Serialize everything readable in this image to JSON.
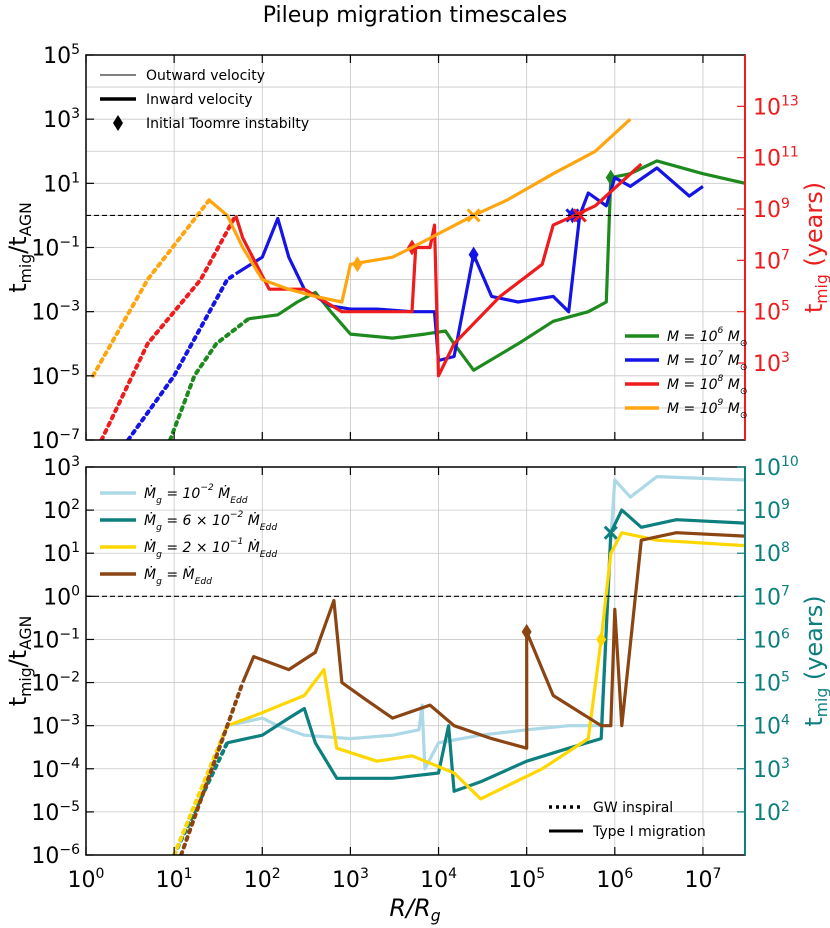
{
  "title": "Pileup migration timescales",
  "x_axis_label": "R/R_g",
  "chart_data": [
    {
      "type": "line",
      "panel": "top",
      "xscale": "log",
      "yscale": "log",
      "xlim": [
        1,
        30000000
      ],
      "ylim": [
        1e-07,
        100000
      ],
      "right_ylim": [
        1,
        1000000000000000.0
      ],
      "right_color": "#ee1c1c",
      "ylabel": "t_mig/t_AGN",
      "right_ylabel": "t_mig (years)",
      "xticks": [
        {
          "base": "10",
          "exp": "0"
        },
        {
          "base": "10",
          "exp": "1"
        },
        {
          "base": "10",
          "exp": "2"
        },
        {
          "base": "10",
          "exp": "3"
        },
        {
          "base": "10",
          "exp": "4"
        },
        {
          "base": "10",
          "exp": "5"
        },
        {
          "base": "10",
          "exp": "6"
        },
        {
          "base": "10",
          "exp": "7"
        }
      ],
      "yticks": [
        {
          "base": "10",
          "exp": "5"
        },
        {
          "base": "10",
          "exp": "3"
        },
        {
          "base": "10",
          "exp": "1"
        },
        {
          "base": "10",
          "exp": "−1"
        },
        {
          "base": "10",
          "exp": "−3"
        },
        {
          "base": "10",
          "exp": "−5"
        },
        {
          "base": "10",
          "exp": "−7"
        }
      ],
      "right_yticks": [
        {
          "base": "10",
          "exp": "13"
        },
        {
          "base": "10",
          "exp": "11"
        },
        {
          "base": "10",
          "exp": "9"
        },
        {
          "base": "10",
          "exp": "7"
        },
        {
          "base": "10",
          "exp": "5"
        },
        {
          "base": "10",
          "exp": "3"
        }
      ],
      "hline": 1,
      "style_legend": {
        "position": "top-left",
        "entries": [
          "Outward velocity",
          "Inward velocity",
          "Initial Toomre instabilty"
        ]
      },
      "series_legend_position": "bottom-right",
      "series": [
        {
          "name": "M = 10^6 M_⊙",
          "color": "#1e8a1e",
          "gw": [
            [
              9,
              1e-07
            ],
            [
              17,
              1e-05
            ],
            [
              30,
              0.0001
            ],
            [
              70,
              0.0006
            ]
          ],
          "migration": [
            [
              70,
              0.0006
            ],
            [
              150,
              0.0008
            ],
            [
              250,
              0.002
            ],
            [
              400,
              0.004
            ],
            [
              600,
              0.001
            ],
            [
              1000,
              0.0002
            ],
            [
              3000,
              0.00015
            ],
            [
              7000,
              0.0002
            ],
            [
              12000,
              0.00025
            ],
            [
              15000,
              0.0001
            ],
            [
              25000,
              1.5e-05
            ],
            [
              80000,
              0.0001
            ],
            [
              200000,
              0.0005
            ],
            [
              500000,
              0.001
            ],
            [
              800000,
              0.002
            ],
            [
              900000,
              15
            ],
            [
              1500000,
              20
            ],
            [
              3000000,
              50
            ],
            [
              10000000,
              20
            ],
            [
              30000000,
              10
            ]
          ],
          "toomre": [
            [
              900000,
              15
            ]
          ],
          "cross": []
        },
        {
          "name": "M = 10^7 M_⊙",
          "color": "#1414e6",
          "gw": [
            [
              3,
              1e-07
            ],
            [
              10,
              1e-05
            ],
            [
              40,
              0.01
            ],
            [
              50,
              0.015
            ]
          ],
          "migration": [
            [
              50,
              0.015
            ],
            [
              100,
              0.05
            ],
            [
              150,
              0.8
            ],
            [
              200,
              0.05
            ],
            [
              300,
              0.005
            ],
            [
              600,
              0.0015
            ],
            [
              1000,
              0.0012
            ],
            [
              2000,
              0.0012
            ],
            [
              5000,
              0.001
            ],
            [
              9000,
              0.001
            ],
            [
              10000,
              3e-05
            ],
            [
              15000,
              4e-05
            ],
            [
              25000,
              0.06
            ],
            [
              40000,
              0.003
            ],
            [
              80000,
              0.002
            ],
            [
              200000,
              0.003
            ],
            [
              300000,
              0.001
            ],
            [
              400000,
              1
            ],
            [
              500000,
              5
            ],
            [
              800000,
              2
            ],
            [
              1000000,
              15
            ],
            [
              1500000,
              8
            ],
            [
              3000000,
              30
            ],
            [
              7000000,
              4
            ],
            [
              10000000,
              8
            ]
          ],
          "toomre": [
            [
              25000,
              0.06
            ],
            [
              330000,
              1
            ]
          ],
          "cross": [
            [
              330000,
              1
            ]
          ]
        },
        {
          "name": "M = 10^8 M_⊙",
          "color": "#ee1c1c",
          "gw": [
            [
              1.5,
              1e-07
            ],
            [
              5,
              0.0001
            ],
            [
              20,
              0.01
            ],
            [
              50,
              1
            ]
          ],
          "migration": [
            [
              50,
              1
            ],
            [
              60,
              0.2
            ],
            [
              120,
              0.005
            ],
            [
              300,
              0.005
            ],
            [
              800,
              0.001
            ],
            [
              2000,
              0.001
            ],
            [
              5000,
              0.001
            ],
            [
              5500,
              0.1
            ],
            [
              8000,
              0.1
            ],
            [
              9000,
              0.5
            ],
            [
              10000,
              1e-05
            ],
            [
              15000,
              0.0001
            ],
            [
              50000,
              0.003
            ],
            [
              150000,
              0.03
            ],
            [
              200000,
              0.5
            ],
            [
              350000,
              1
            ],
            [
              600000,
              2
            ],
            [
              2000000,
              40
            ]
          ],
          "toomre": [
            [
              5000,
              0.1
            ]
          ],
          "cross": [
            [
              400000,
              1
            ]
          ]
        },
        {
          "name": "M = 10^9 M_⊙",
          "color": "#ffa510",
          "gw": [
            [
              1.2,
              1e-05
            ],
            [
              5,
              0.01
            ],
            [
              25,
              3
            ]
          ],
          "migration": [
            [
              25,
              3
            ],
            [
              40,
              1
            ],
            [
              60,
              0.1
            ],
            [
              100,
              0.01
            ],
            [
              200,
              0.005
            ],
            [
              400,
              0.003
            ],
            [
              800,
              0.002
            ],
            [
              1000,
              0.03
            ],
            [
              3000,
              0.05
            ],
            [
              5000,
              0.1
            ],
            [
              25000,
              1
            ],
            [
              60000,
              3
            ],
            [
              200000,
              20
            ],
            [
              600000,
              100
            ],
            [
              1500000,
              1000
            ]
          ],
          "toomre": [
            [
              1200,
              0.03
            ]
          ],
          "cross": [
            [
              25000,
              1
            ]
          ]
        }
      ]
    },
    {
      "type": "line",
      "panel": "bottom",
      "xscale": "log",
      "yscale": "log",
      "xlim": [
        1,
        30000000
      ],
      "ylim": [
        1e-06,
        1000
      ],
      "right_ylim": [
        10,
        10000000000.0
      ],
      "right_color": "#0d7f7f",
      "ylabel": "t_mig/t_AGN",
      "right_ylabel": "t_mig (years)",
      "xlabel": "R/R_g",
      "xticks": [
        {
          "base": "10",
          "exp": "0"
        },
        {
          "base": "10",
          "exp": "1"
        },
        {
          "base": "10",
          "exp": "2"
        },
        {
          "base": "10",
          "exp": "3"
        },
        {
          "base": "10",
          "exp": "4"
        },
        {
          "base": "10",
          "exp": "5"
        },
        {
          "base": "10",
          "exp": "6"
        },
        {
          "base": "10",
          "exp": "7"
        }
      ],
      "yticks": [
        {
          "base": "10",
          "exp": "3"
        },
        {
          "base": "10",
          "exp": "2"
        },
        {
          "base": "10",
          "exp": "1"
        },
        {
          "base": "10",
          "exp": "0"
        },
        {
          "base": "10",
          "exp": "−1"
        },
        {
          "base": "10",
          "exp": "−2"
        },
        {
          "base": "10",
          "exp": "−3"
        },
        {
          "base": "10",
          "exp": "−4"
        },
        {
          "base": "10",
          "exp": "−5"
        },
        {
          "base": "10",
          "exp": "−6"
        }
      ],
      "right_yticks": [
        {
          "base": "10",
          "exp": "10"
        },
        {
          "base": "10",
          "exp": "9"
        },
        {
          "base": "10",
          "exp": "8"
        },
        {
          "base": "10",
          "exp": "7"
        },
        {
          "base": "10",
          "exp": "6"
        },
        {
          "base": "10",
          "exp": "5"
        },
        {
          "base": "10",
          "exp": "4"
        },
        {
          "base": "10",
          "exp": "3"
        },
        {
          "base": "10",
          "exp": "2"
        }
      ],
      "hline": 1,
      "series_legend_position": "top-left",
      "style_legend": {
        "position": "bottom-right",
        "entries": [
          "GW inspiral",
          "Type I migration"
        ]
      },
      "series": [
        {
          "name": "Ṁ_g = 10^−2 Ṁ_Edd",
          "color": "#add8e6",
          "gw": [
            [
              10,
              1e-06
            ],
            [
              40,
              0.001
            ]
          ],
          "migration": [
            [
              40,
              0.001
            ],
            [
              100,
              0.0015
            ],
            [
              150,
              0.001
            ],
            [
              300,
              0.0006
            ],
            [
              1000,
              0.0005
            ],
            [
              3000,
              0.0006
            ],
            [
              6000,
              0.0008
            ],
            [
              6500,
              0.003
            ],
            [
              7000,
              0.0001
            ],
            [
              10000,
              0.0004
            ],
            [
              30000,
              0.0006
            ],
            [
              100000,
              0.0008
            ],
            [
              300000,
              0.001
            ],
            [
              700000,
              0.001
            ],
            [
              900000,
              20
            ],
            [
              1000000,
              500
            ],
            [
              1500000,
              200
            ],
            [
              3000000,
              600
            ],
            [
              30000000,
              500
            ]
          ],
          "toomre": [],
          "cross": []
        },
        {
          "name": "Ṁ_g = 6 × 10^−2 Ṁ_Edd",
          "color": "#0d7f7f",
          "gw": [
            [
              10,
              1e-06
            ],
            [
              40,
              0.0004
            ]
          ],
          "migration": [
            [
              40,
              0.0004
            ],
            [
              100,
              0.0006
            ],
            [
              200,
              0.0015
            ],
            [
              300,
              0.0025
            ],
            [
              400,
              0.0004
            ],
            [
              700,
              6e-05
            ],
            [
              3000,
              6e-05
            ],
            [
              10000,
              8e-05
            ],
            [
              13000,
              0.001
            ],
            [
              15000,
              3e-05
            ],
            [
              30000,
              5e-05
            ],
            [
              100000,
              0.00015
            ],
            [
              300000,
              0.0003
            ],
            [
              700000,
              0.0005
            ],
            [
              900000,
              30
            ],
            [
              1200000,
              100
            ],
            [
              2000000,
              40
            ],
            [
              5000000,
              60
            ],
            [
              30000000,
              50
            ]
          ],
          "toomre": [],
          "cross": [
            [
              900000,
              30
            ]
          ]
        },
        {
          "name": "Ṁ_g = 2 × 10^−1 Ṁ_Edd",
          "color": "#ffd700",
          "gw": [
            [
              10,
              1e-06
            ],
            [
              40,
              0.001
            ]
          ],
          "migration": [
            [
              40,
              0.001
            ],
            [
              100,
              0.002
            ],
            [
              300,
              0.005
            ],
            [
              500,
              0.02
            ],
            [
              700,
              0.0003
            ],
            [
              2000,
              0.00015
            ],
            [
              5000,
              0.0002
            ],
            [
              15000,
              8e-05
            ],
            [
              30000,
              2e-05
            ],
            [
              60000,
              4e-05
            ],
            [
              150000,
              0.0001
            ],
            [
              500000,
              0.0005
            ],
            [
              700000,
              0.1
            ],
            [
              900000,
              10
            ],
            [
              1200000,
              30
            ],
            [
              3000000,
              20
            ],
            [
              30000000,
              15
            ]
          ],
          "toomre": [
            [
              700000,
              0.1
            ]
          ],
          "cross": []
        },
        {
          "name": "Ṁ_g = Ṁ_Edd",
          "color": "#8b4513",
          "gw": [
            [
              12,
              1e-06
            ],
            [
              60,
              0.01
            ]
          ],
          "migration": [
            [
              60,
              0.01
            ],
            [
              80,
              0.04
            ],
            [
              200,
              0.02
            ],
            [
              400,
              0.05
            ],
            [
              650,
              0.8
            ],
            [
              800,
              0.01
            ],
            [
              1500,
              0.004
            ],
            [
              3000,
              0.0015
            ],
            [
              8000,
              0.003
            ],
            [
              15000,
              0.001
            ],
            [
              40000,
              0.0005
            ],
            [
              100000,
              0.0003
            ],
            [
              100000,
              0.15
            ],
            [
              200000,
              0.005
            ],
            [
              700000,
              0.001
            ],
            [
              900000,
              0.001
            ],
            [
              1000000,
              0.5
            ],
            [
              1200000,
              0.001
            ],
            [
              2000000,
              20
            ],
            [
              5000000,
              30
            ],
            [
              30000000,
              25
            ]
          ],
          "toomre": [
            [
              100000,
              0.15
            ]
          ],
          "cross": []
        }
      ]
    }
  ]
}
